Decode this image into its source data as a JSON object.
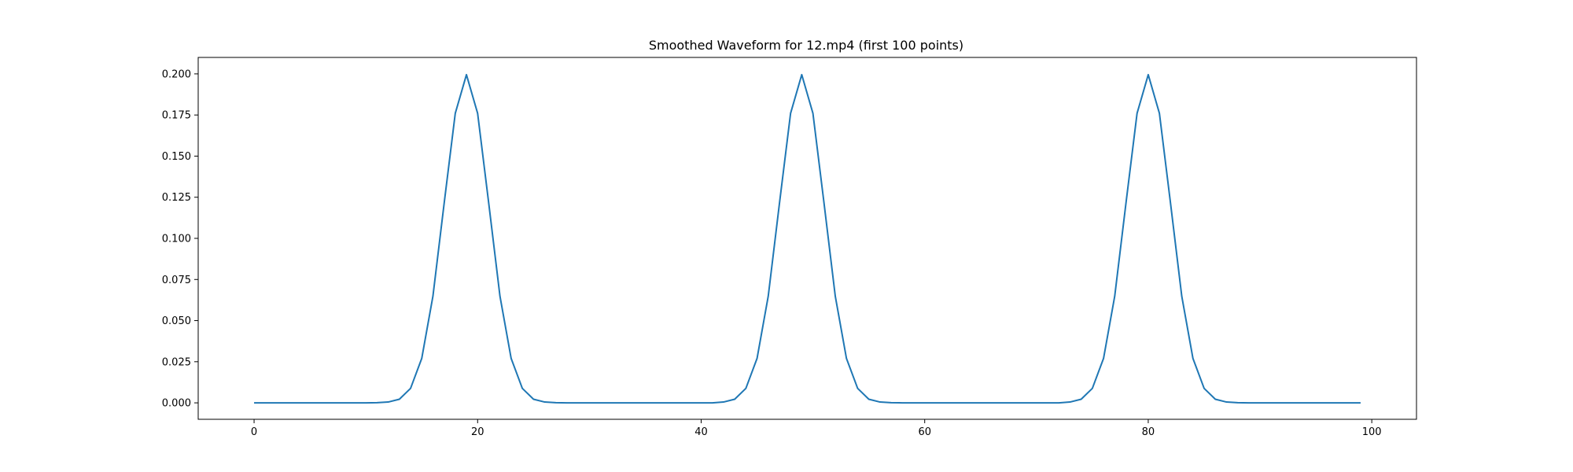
{
  "chart_data": {
    "type": "line",
    "title": "Smoothed Waveform for 12.mp4 (first 100 points)",
    "xlabel": "",
    "ylabel": "",
    "xlim": [
      -5,
      104
    ],
    "ylim": [
      -0.01,
      0.21
    ],
    "xticks": [
      0,
      20,
      40,
      60,
      80,
      100
    ],
    "xtick_labels": [
      "0",
      "20",
      "40",
      "60",
      "80",
      "100"
    ],
    "yticks": [
      0.0,
      0.025,
      0.05,
      0.075,
      0.1,
      0.125,
      0.15,
      0.175,
      0.2
    ],
    "ytick_labels": [
      "0.000",
      "0.025",
      "0.050",
      "0.075",
      "0.100",
      "0.125",
      "0.150",
      "0.175",
      "0.200"
    ],
    "grid": false,
    "line_color": "#1f77b4",
    "series": [
      {
        "x": [
          0,
          1,
          2,
          3,
          4,
          5,
          6,
          7,
          8,
          9,
          10,
          11,
          12,
          13,
          14,
          15,
          16,
          17,
          18,
          19,
          20,
          21,
          22,
          23,
          24,
          25,
          26,
          27,
          28,
          29,
          30,
          31,
          32,
          33,
          34,
          35,
          36,
          37,
          38,
          39,
          40,
          41,
          42,
          43,
          44,
          45,
          46,
          47,
          48,
          49,
          50,
          51,
          52,
          53,
          54,
          55,
          56,
          57,
          58,
          59,
          60,
          61,
          62,
          63,
          64,
          65,
          66,
          67,
          68,
          69,
          70,
          71,
          72,
          73,
          74,
          75,
          76,
          77,
          78,
          79,
          80,
          81,
          82,
          83,
          84,
          85,
          86,
          87,
          88,
          89,
          90,
          91,
          92,
          93,
          94,
          95,
          96,
          97,
          98,
          99
        ],
        "values": [
          0,
          0,
          0,
          0,
          0,
          0,
          0,
          0,
          0,
          0,
          0,
          0.0001,
          0.0005,
          0.0022,
          0.0088,
          0.027,
          0.0648,
          0.121,
          0.176,
          0.1995,
          0.176,
          0.121,
          0.0648,
          0.027,
          0.0088,
          0.0022,
          0.0005,
          0.0001,
          0,
          0,
          0,
          0,
          0,
          0,
          0,
          0,
          0,
          0,
          0,
          0,
          0,
          0,
          0.0005,
          0.0022,
          0.0088,
          0.027,
          0.0648,
          0.121,
          0.176,
          0.1995,
          0.176,
          0.121,
          0.0648,
          0.027,
          0.0088,
          0.0022,
          0.0005,
          0.0001,
          0,
          0,
          0,
          0,
          0,
          0,
          0,
          0,
          0,
          0,
          0,
          0,
          0,
          0,
          0,
          0.0005,
          0.0022,
          0.0088,
          0.027,
          0.0648,
          0.121,
          0.176,
          0.1995,
          0.176,
          0.121,
          0.0648,
          0.027,
          0.0088,
          0.0022,
          0.0005,
          0.0001,
          0,
          0,
          0,
          0,
          0,
          0,
          0,
          0,
          0,
          0,
          0
        ]
      }
    ]
  }
}
